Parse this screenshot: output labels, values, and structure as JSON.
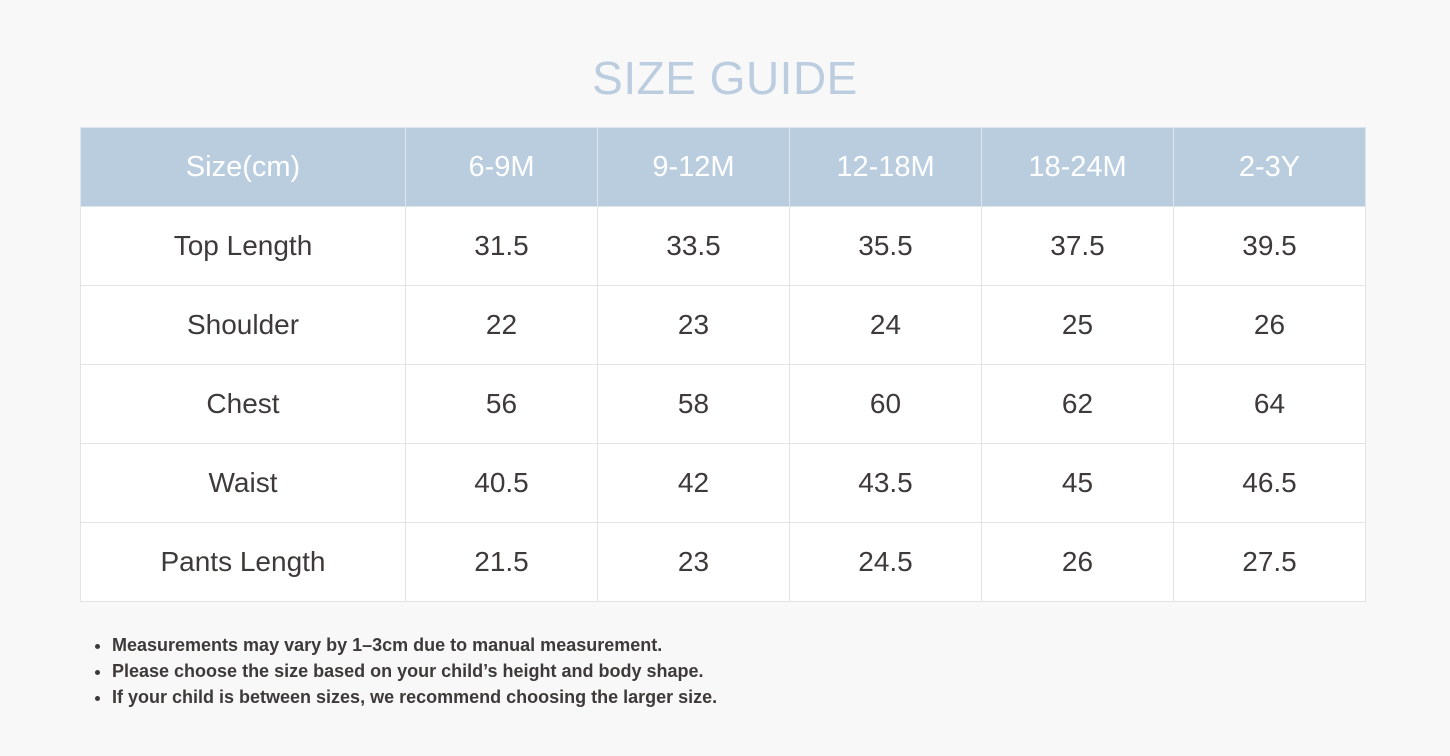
{
  "title": "SIZE GUIDE",
  "table": {
    "headers": [
      "Size(cm)",
      "6-9M",
      "9-12M",
      "12-18M",
      "18-24M",
      "2-3Y"
    ],
    "rows": [
      [
        "Top Length",
        "31.5",
        "33.5",
        "35.5",
        "37.5",
        "39.5"
      ],
      [
        "Shoulder",
        "22",
        "23",
        "24",
        "25",
        "26"
      ],
      [
        "Chest",
        "56",
        "58",
        "60",
        "62",
        "64"
      ],
      [
        "Waist",
        "40.5",
        "42",
        "43.5",
        "45",
        "46.5"
      ],
      [
        "Pants Length",
        "21.5",
        "23",
        "24.5",
        "26",
        "27.5"
      ]
    ]
  },
  "notes": [
    "Measurements may vary by 1–3cm due to manual measurement.",
    "Please choose the size based on your child’s height and body shape.",
    "If your child is between sizes, we recommend choosing the larger size."
  ],
  "colors": {
    "title": "#bccde0",
    "header_bg": "#bacddf",
    "header_text": "#ffffff",
    "body_text": "#3e3a39",
    "page_bg": "#f8f8f8"
  }
}
